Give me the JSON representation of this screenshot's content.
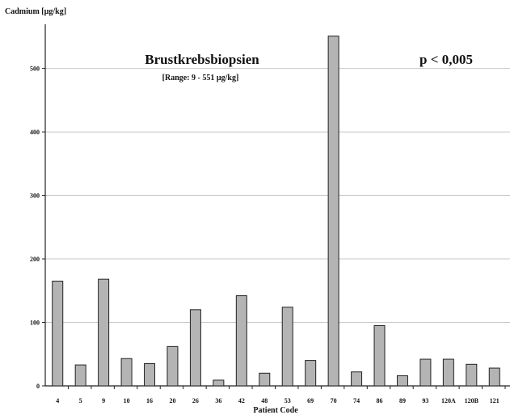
{
  "chart_data": {
    "type": "bar",
    "title": "Brustkrebsbiopsien",
    "subtitle": "[Range: 9 - 551 µg/kg]",
    "annotation": "p < 0,005",
    "ylabel": "Cadmium [µg/kg]",
    "xlabel": "Patient Code",
    "ylim": [
      0,
      560
    ],
    "yticks": [
      0,
      100,
      200,
      300,
      400,
      500
    ],
    "ytick_labels": [
      "0",
      "100",
      "200",
      "300",
      "400",
      "500"
    ],
    "grid": true,
    "categories": [
      "4",
      "5",
      "9",
      "10",
      "16",
      "20",
      "26",
      "36",
      "42",
      "48",
      "53",
      "69",
      "70",
      "74",
      "86",
      "89",
      "93",
      "120A",
      "120B",
      "121"
    ],
    "values": [
      165,
      33,
      168,
      43,
      35,
      62,
      120,
      9,
      142,
      20,
      124,
      40,
      551,
      22,
      95,
      16,
      42,
      42,
      34,
      28
    ],
    "bar_color": "#b4b4b4",
    "bar_edge_color": "#222222",
    "grid_color": "#c8c8c8"
  }
}
